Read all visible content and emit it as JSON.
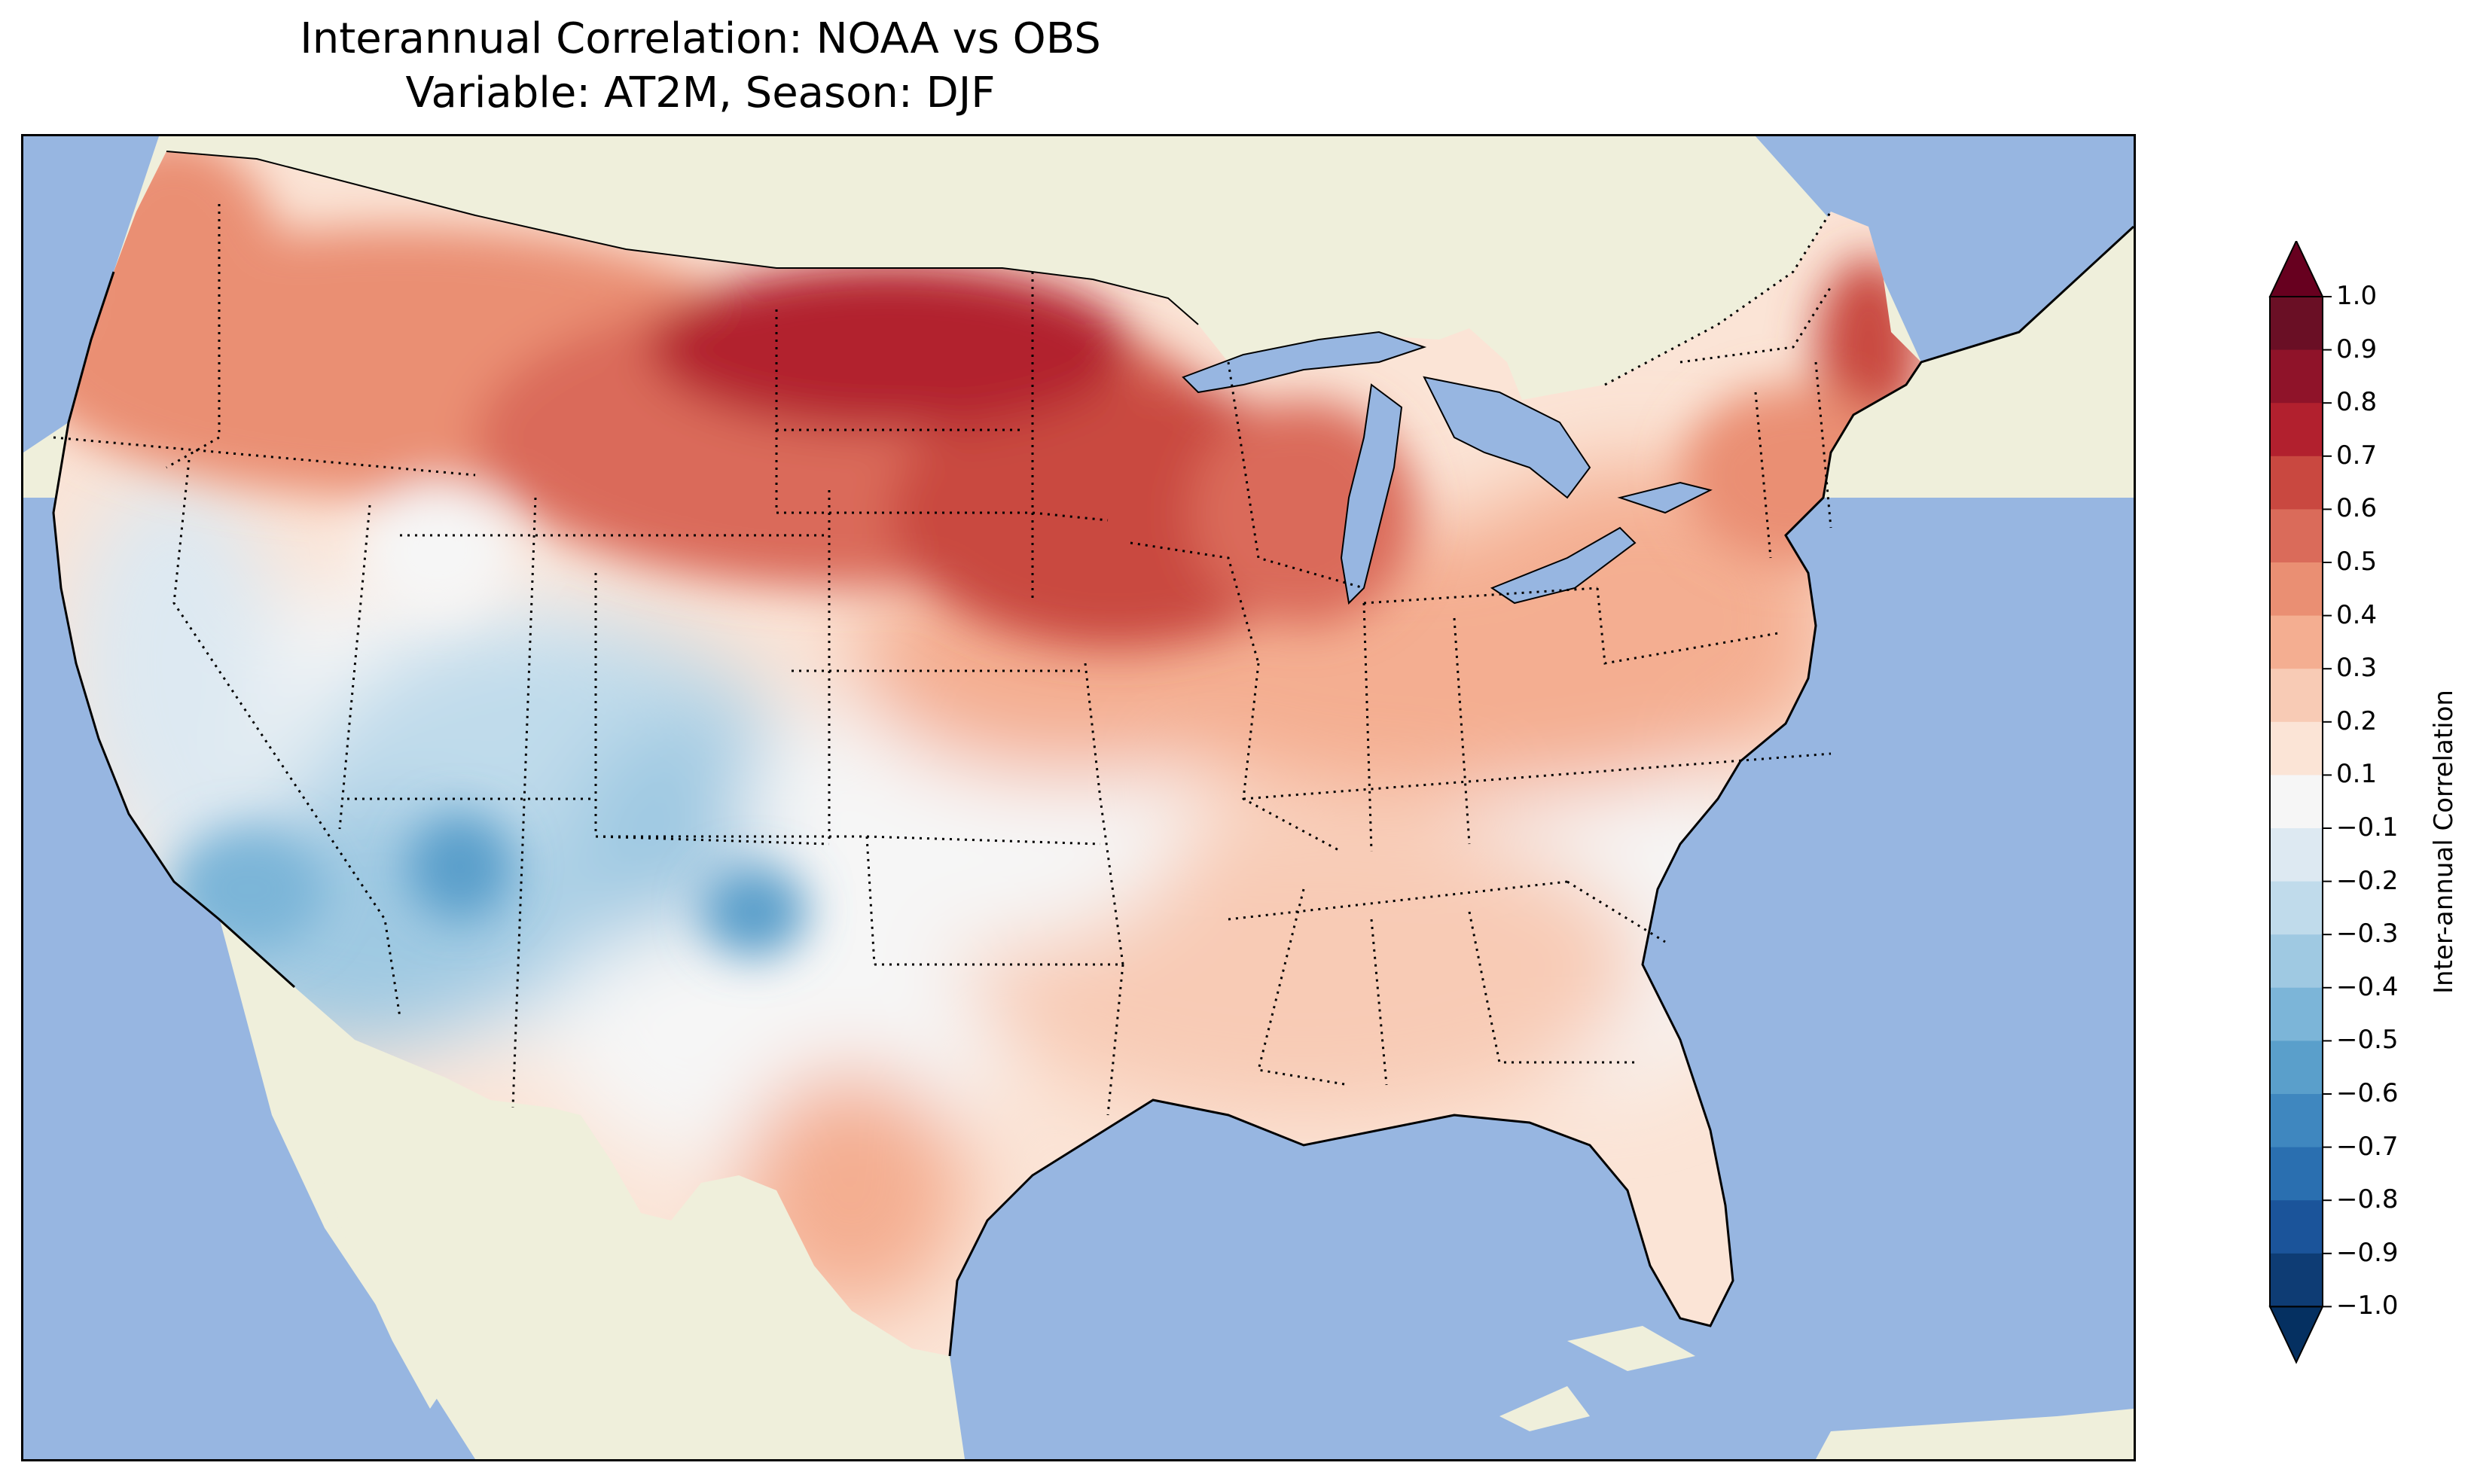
{
  "title": {
    "line1": "Interannual Correlation: NOAA vs OBS",
    "line2": "Variable: AT2M, Season: DJF"
  },
  "colorbar": {
    "label": "Inter-annual Correlation",
    "ticks": [
      "1.0",
      "0.9",
      "0.8",
      "0.7",
      "0.6",
      "0.5",
      "0.4",
      "0.3",
      "0.2",
      "0.1",
      "−0.1",
      "−0.2",
      "−0.3",
      "−0.4",
      "−0.5",
      "−0.6",
      "−0.7",
      "−0.8",
      "−0.9",
      "−1.0"
    ],
    "levels": [
      1.0,
      0.9,
      0.8,
      0.7,
      0.6,
      0.5,
      0.4,
      0.3,
      0.2,
      0.1,
      -0.1,
      -0.2,
      -0.3,
      -0.4,
      -0.5,
      -0.6,
      -0.7,
      -0.8,
      -0.9,
      -1.0
    ],
    "colors": [
      "#6a0f25",
      "#8f1329",
      "#b2202e",
      "#c94840",
      "#da6b5a",
      "#ea8f73",
      "#f4ae91",
      "#f8cbb5",
      "#fbe4d6",
      "#f6f6f6",
      "#dde9f2",
      "#c0dbeb",
      "#9fc9e2",
      "#7cb5d8",
      "#5a9fcb",
      "#3f87bf",
      "#2a6fb0",
      "#1b549a",
      "#0e3c74"
    ],
    "extend_over": "#67001f",
    "extend_under": "#053061"
  },
  "map": {
    "ocean_color": "#97b6e1",
    "land_color": "#efefdb",
    "domain": "Contiguous United States",
    "regions": [
      {
        "name": "northern-plains",
        "correlation": 0.75
      },
      {
        "name": "upper-midwest",
        "correlation": 0.65
      },
      {
        "name": "pacific-northwest",
        "correlation": 0.45
      },
      {
        "name": "great-lakes",
        "correlation": 0.5
      },
      {
        "name": "northeast",
        "correlation": 0.45
      },
      {
        "name": "central-plains",
        "correlation": 0.4
      },
      {
        "name": "southeast",
        "correlation": 0.25
      },
      {
        "name": "texas",
        "correlation": 0.3
      },
      {
        "name": "southwest",
        "correlation": -0.35
      },
      {
        "name": "great-basin",
        "correlation": -0.25
      },
      {
        "name": "california",
        "correlation": -0.15
      }
    ]
  }
}
